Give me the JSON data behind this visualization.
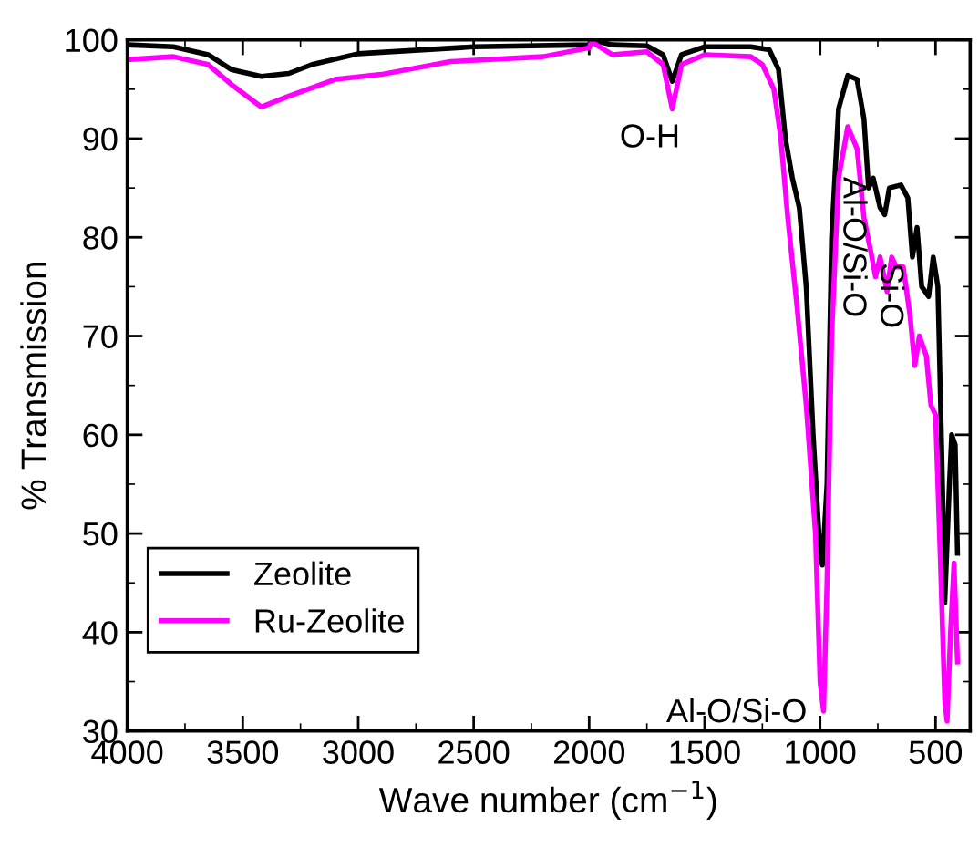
{
  "chart_data": {
    "type": "line",
    "xlabel": "Wave number (cm$^{−1}$)",
    "ylabel": "% Transmission",
    "xlim": [
      4000,
      350
    ],
    "xticks": [
      4000,
      3500,
      3000,
      2500,
      2000,
      1500,
      1000,
      500
    ],
    "ylim": [
      30,
      100
    ],
    "yticks": [
      30,
      40,
      50,
      60,
      70,
      80,
      90,
      100
    ],
    "legend": "bottom left",
    "grid": false,
    "line_style": "solid",
    "marker": "none",
    "annotations": [
      "O-H",
      "Al-O/Si-O",
      "Al-O/Si-O",
      "Si-O"
    ],
    "series": [
      {
        "name": "Zeolite",
        "color": "#000000",
        "x": [
          4000,
          3800,
          3650,
          3550,
          3420,
          3300,
          3200,
          3000,
          2500,
          2000,
          1990,
          1900,
          1750,
          1680,
          1640,
          1600,
          1500,
          1300,
          1220,
          1180,
          1150,
          1120,
          1090,
          1060,
          1030,
          1000,
          990,
          970,
          950,
          920,
          880,
          840,
          810,
          790,
          770,
          740,
          720,
          700,
          650,
          620,
          600,
          580,
          560,
          530,
          510,
          490,
          470,
          460,
          440,
          430,
          415,
          405
        ],
        "values": [
          99.5,
          99.3,
          98.5,
          97,
          96.3,
          96.6,
          97.5,
          98.6,
          99.3,
          99.5,
          100,
          99.5,
          99.4,
          98.5,
          95.8,
          98.5,
          99.3,
          99.3,
          99,
          97,
          90,
          86,
          83,
          75,
          60,
          48,
          46.8,
          55,
          80,
          93,
          96.4,
          96,
          92,
          85,
          86,
          83,
          82.3,
          85,
          85.3,
          84,
          78,
          81,
          75,
          74,
          78,
          75,
          55,
          43,
          55,
          60,
          59,
          48
        ]
      },
      {
        "name": "Ru-Zeolite",
        "color": "#ff00ff",
        "x": [
          4000,
          3800,
          3650,
          3550,
          3420,
          3300,
          3100,
          2900,
          2600,
          2200,
          2000,
          1990,
          1900,
          1750,
          1680,
          1640,
          1600,
          1500,
          1300,
          1250,
          1200,
          1170,
          1140,
          1100,
          1060,
          1020,
          1000,
          985,
          970,
          950,
          920,
          880,
          840,
          810,
          780,
          760,
          740,
          710,
          690,
          670,
          640,
          610,
          590,
          570,
          540,
          520,
          500,
          480,
          460,
          450,
          435,
          420,
          405
        ],
        "values": [
          98,
          98.3,
          97.5,
          95.5,
          93.2,
          94.3,
          96,
          96.5,
          97.8,
          98.3,
          99.2,
          99.8,
          98.5,
          98.8,
          97.5,
          93,
          97.5,
          98.5,
          98.3,
          97.5,
          95,
          90,
          82,
          73,
          63,
          50,
          35,
          32,
          45,
          70,
          86,
          91.2,
          89,
          82,
          78.5,
          76,
          78,
          74.5,
          78,
          77,
          77,
          72,
          67,
          70,
          68,
          63,
          62,
          48,
          33,
          31,
          40,
          47,
          37
        ]
      }
    ]
  }
}
